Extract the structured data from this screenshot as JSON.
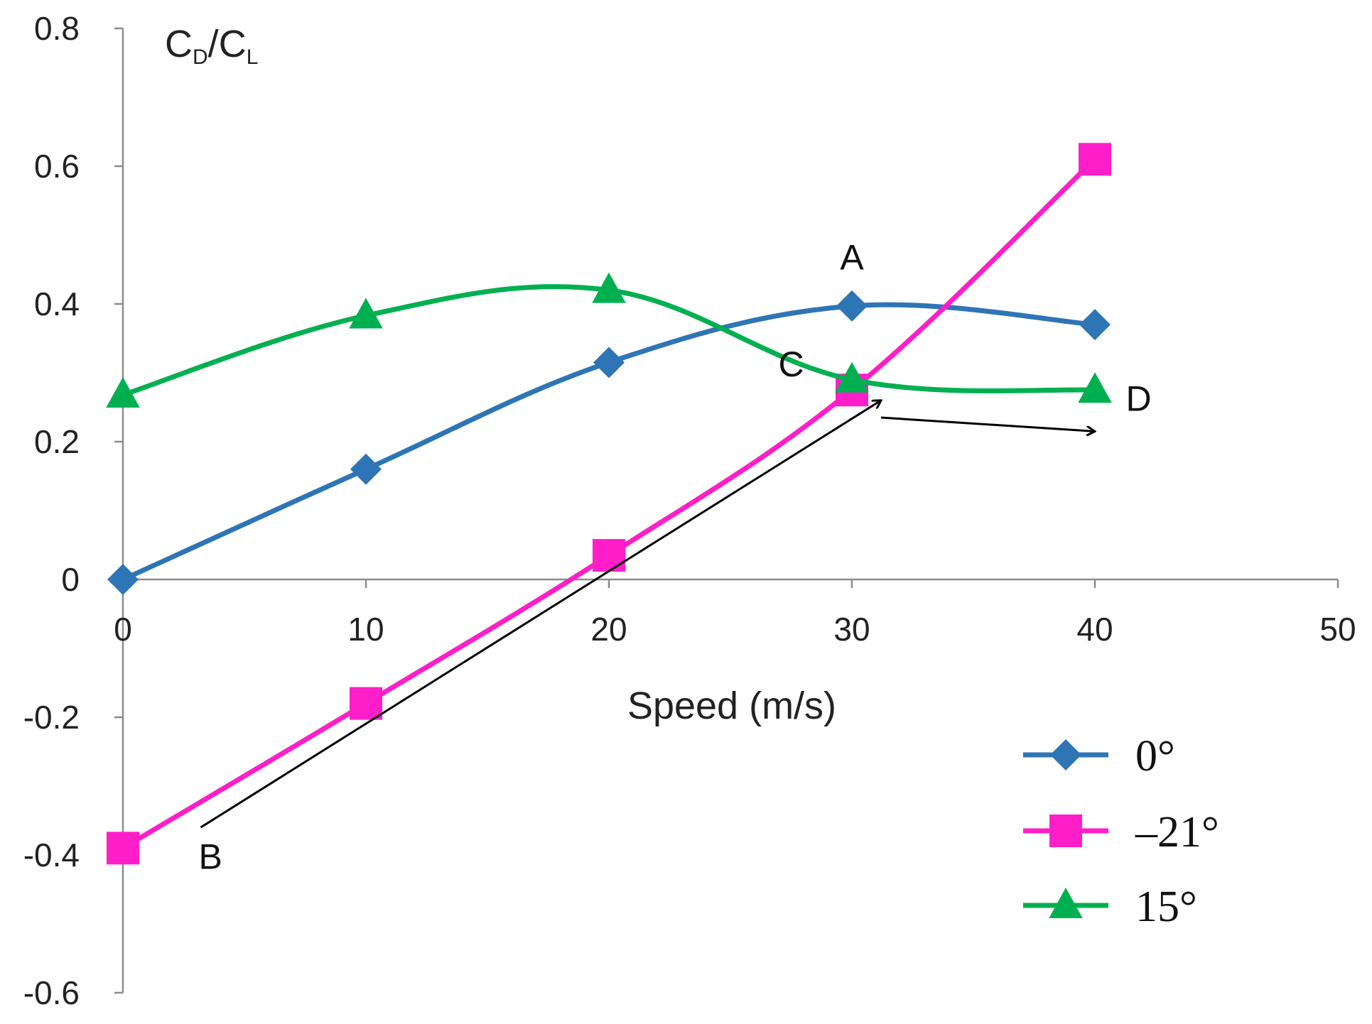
{
  "chart_data": {
    "type": "line",
    "title": "",
    "xlabel": "Speed (m/s)",
    "ylabel": {
      "base1": "C",
      "sub1": "D",
      "sep": "/",
      "base2": "C",
      "sub2": "L"
    },
    "xlim": [
      0,
      50
    ],
    "ylim": [
      -0.6,
      0.8
    ],
    "xticks": [
      "0",
      "10",
      "20",
      "30",
      "40",
      "50"
    ],
    "yticks": [
      "0.8",
      "0.6",
      "0.4",
      "0.2",
      "0",
      "-0.2",
      "-0.4",
      "-0.6"
    ],
    "grid": false,
    "legend_position": "bottom-right",
    "series": [
      {
        "name": "0°",
        "color": "#2E75B6",
        "marker": "diamond",
        "x": [
          0,
          10,
          20,
          30,
          40
        ],
        "y": [
          0.0,
          0.16,
          0.315,
          0.397,
          0.37
        ]
      },
      {
        "name": "–21°",
        "color": "#FF1EC8",
        "marker": "square",
        "x": [
          0,
          10,
          20,
          30,
          40
        ],
        "y": [
          -0.39,
          -0.18,
          0.035,
          0.275,
          0.61
        ]
      },
      {
        "name": "15°",
        "color": "#00B050",
        "marker": "triangle",
        "x": [
          0,
          10,
          20,
          30,
          40
        ],
        "y": [
          0.268,
          0.383,
          0.42,
          0.29,
          0.275
        ]
      }
    ],
    "annotations": [
      {
        "label": "A",
        "x": 30,
        "y": 0.45
      },
      {
        "label": "B",
        "x": 3.6,
        "y": -0.42
      },
      {
        "label": "C",
        "x": 27.5,
        "y": 0.295
      },
      {
        "label": "D",
        "x": 41.8,
        "y": 0.245
      }
    ],
    "arrows": [
      {
        "from": [
          3.2,
          -0.36
        ],
        "to": [
          31.2,
          0.26
        ]
      },
      {
        "from": [
          31.2,
          0.235
        ],
        "to": [
          40.0,
          0.215
        ]
      }
    ]
  }
}
